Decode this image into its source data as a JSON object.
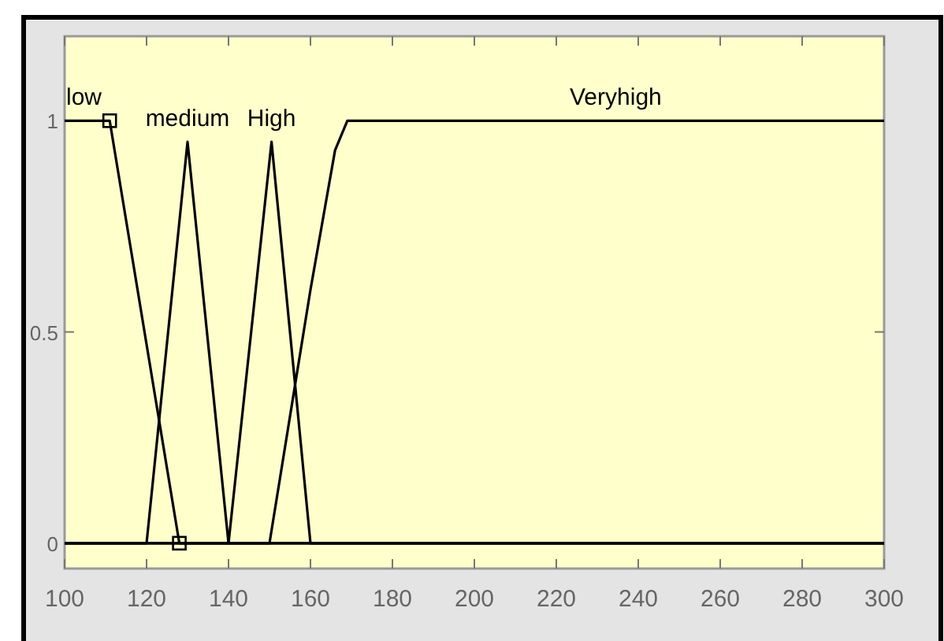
{
  "chart_data": {
    "type": "line",
    "xlim": [
      100,
      300
    ],
    "ylim": [
      -0.06,
      1.2
    ],
    "xticks": [
      100,
      120,
      140,
      160,
      180,
      200,
      220,
      240,
      260,
      280,
      300
    ],
    "yticks": [
      0,
      0.5,
      1
    ],
    "grid": false,
    "line_style": "solid",
    "series": [
      {
        "name": "low",
        "color": "#000000",
        "x": [
          100,
          111,
          128,
          300
        ],
        "values": [
          1,
          1,
          0,
          0
        ],
        "marker": "square"
      },
      {
        "name": "medium",
        "color": "#000000",
        "x": [
          100,
          120,
          130,
          140,
          300
        ],
        "values": [
          0,
          0,
          0.95,
          0,
          0
        ]
      },
      {
        "name": "High",
        "color": "#000000",
        "x": [
          100,
          140,
          150.5,
          160,
          300
        ],
        "values": [
          0,
          0,
          0.95,
          0,
          0
        ]
      },
      {
        "name": "Veryhigh",
        "color": "#000000",
        "x": [
          100,
          150,
          160,
          166,
          169,
          300
        ],
        "values": [
          0,
          0,
          0.6,
          0.93,
          1,
          1
        ]
      }
    ]
  }
}
